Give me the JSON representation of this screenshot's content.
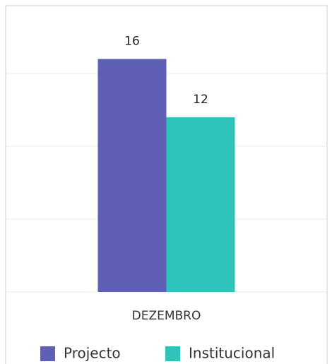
{
  "chart_data": {
    "type": "bar",
    "categories": [
      "DEZEMBRO"
    ],
    "series": [
      {
        "name": "Projecto",
        "color": "#5f5fb5",
        "values": [
          16
        ]
      },
      {
        "name": "Institucional",
        "color": "#2ec4bc",
        "values": [
          12
        ]
      }
    ],
    "ylim": [
      0,
      20
    ],
    "yticks": [
      0,
      5,
      10,
      15
    ],
    "grid": true,
    "legend": "bottom"
  }
}
